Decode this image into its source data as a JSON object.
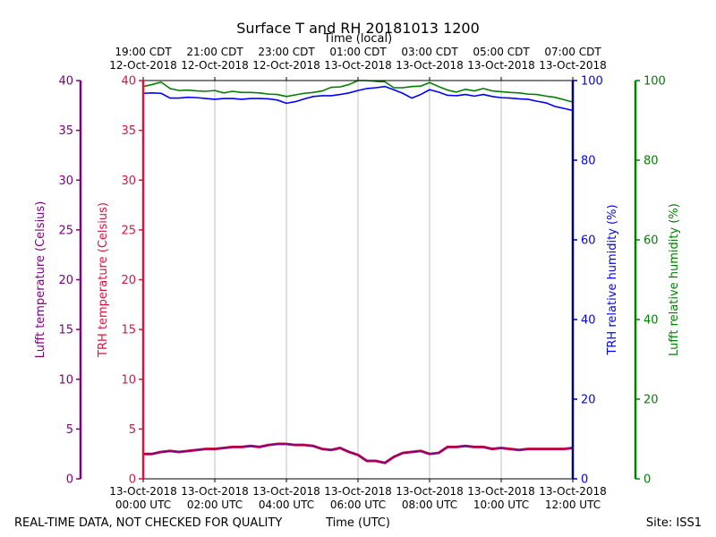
{
  "chart_data": {
    "type": "line",
    "title": "Surface T and RH 20181013 1200",
    "top_axis_label": "Time (local)",
    "top_ticks": [
      {
        "line1": "19:00 CDT",
        "line2": "12-Oct-2018",
        "hour": 0
      },
      {
        "line1": "21:00 CDT",
        "line2": "12-Oct-2018",
        "hour": 2
      },
      {
        "line1": "23:00 CDT",
        "line2": "12-Oct-2018",
        "hour": 4
      },
      {
        "line1": "01:00 CDT",
        "line2": "13-Oct-2018",
        "hour": 6
      },
      {
        "line1": "03:00 CDT",
        "line2": "13-Oct-2018",
        "hour": 8
      },
      {
        "line1": "05:00 CDT",
        "line2": "13-Oct-2018",
        "hour": 10
      },
      {
        "line1": "07:00 CDT",
        "line2": "13-Oct-2018",
        "hour": 12
      }
    ],
    "bottom_ticks": [
      {
        "line1": "13-Oct-2018",
        "line2": "00:00 UTC",
        "hour": 0
      },
      {
        "line1": "13-Oct-2018",
        "line2": "02:00 UTC",
        "hour": 2
      },
      {
        "line1": "13-Oct-2018",
        "line2": "04:00 UTC",
        "hour": 4
      },
      {
        "line1": "13-Oct-2018",
        "line2": "06:00 UTC",
        "hour": 6
      },
      {
        "line1": "13-Oct-2018",
        "line2": "08:00 UTC",
        "hour": 8
      },
      {
        "line1": "13-Oct-2018",
        "line2": "10:00 UTC",
        "hour": 10
      },
      {
        "line1": "13-Oct-2018",
        "line2": "12:00 UTC",
        "hour": 12
      }
    ],
    "xlabel": "Time (UTC)",
    "xlim_hours_utc": [
      0,
      12
    ],
    "grid": "vertical",
    "axes": {
      "lufft_temp": {
        "label": "Lufft temperature (Celsius)",
        "ylim": [
          0,
          40
        ],
        "ticks": [
          0,
          5,
          10,
          15,
          20,
          25,
          30,
          35,
          40
        ],
        "color": "#800080"
      },
      "trh_temp": {
        "label": "TRH temperature (Celsius)",
        "ylim": [
          0,
          40
        ],
        "ticks": [
          0,
          5,
          10,
          15,
          20,
          25,
          30,
          35,
          40
        ],
        "color": "#dc143c"
      },
      "trh_rh": {
        "label": "TRH relative humidity (%)",
        "ylim": [
          0,
          100
        ],
        "ticks": [
          0,
          20,
          40,
          60,
          80,
          100
        ],
        "color": "#0000ff",
        "spine_color": "#00008b"
      },
      "lufft_rh": {
        "label": "Lufft relative humidity (%)",
        "ylim": [
          0,
          100
        ],
        "ticks": [
          0,
          20,
          40,
          60,
          80,
          100
        ],
        "color": "#008000"
      }
    },
    "series": [
      {
        "axis": "trh_temp",
        "color": "#dc143c",
        "x": [
          0,
          0.25,
          0.5,
          0.75,
          1,
          1.25,
          1.5,
          1.75,
          2,
          2.25,
          2.5,
          2.75,
          3,
          3.25,
          3.5,
          3.75,
          4,
          4.25,
          4.5,
          4.75,
          5,
          5.25,
          5.5,
          5.75,
          6,
          6.25,
          6.5,
          6.75,
          7,
          7.25,
          7.5,
          7.75,
          8,
          8.25,
          8.5,
          8.75,
          9,
          9.25,
          9.5,
          9.75,
          10,
          10.25,
          10.5,
          10.75,
          11,
          11.25,
          11.5,
          11.75,
          12
        ],
        "values": [
          2.5,
          2.5,
          2.7,
          2.8,
          2.7,
          2.8,
          2.9,
          3.0,
          3.0,
          3.1,
          3.2,
          3.2,
          3.3,
          3.2,
          3.4,
          3.5,
          3.5,
          3.4,
          3.4,
          3.3,
          3.0,
          2.9,
          3.1,
          2.7,
          2.4,
          1.8,
          1.8,
          1.6,
          2.2,
          2.6,
          2.7,
          2.8,
          2.5,
          2.6,
          3.2,
          3.2,
          3.3,
          3.2,
          3.2,
          3.0,
          3.1,
          3.0,
          2.9,
          3.0,
          3.0,
          3.0,
          3.0,
          3.0,
          3.1
        ]
      },
      {
        "axis": "lufft_temp",
        "color": "#800080",
        "x": [
          0,
          0.25,
          0.5,
          0.75,
          1,
          1.25,
          1.5,
          1.75,
          2,
          2.25,
          2.5,
          2.75,
          3,
          3.25,
          3.5,
          3.75,
          4,
          4.25,
          4.5,
          4.75,
          5,
          5.25,
          5.5,
          5.75,
          6,
          6.25,
          6.5,
          6.75,
          7,
          7.25,
          7.5,
          7.75,
          8,
          8.25,
          8.5,
          8.75,
          9,
          9.25,
          9.5,
          9.75,
          10,
          10.25,
          10.5,
          10.75,
          11,
          11.25,
          11.5,
          11.75,
          12
        ],
        "values": [
          2.5,
          2.5,
          2.7,
          2.8,
          2.7,
          2.8,
          2.9,
          3.0,
          3.0,
          3.1,
          3.2,
          3.2,
          3.3,
          3.2,
          3.4,
          3.5,
          3.5,
          3.4,
          3.4,
          3.3,
          3.0,
          2.9,
          3.1,
          2.7,
          2.4,
          1.8,
          1.8,
          1.6,
          2.2,
          2.6,
          2.7,
          2.8,
          2.5,
          2.6,
          3.2,
          3.2,
          3.3,
          3.2,
          3.2,
          3.0,
          3.1,
          3.0,
          2.9,
          3.0,
          3.0,
          3.0,
          3.0,
          3.0,
          3.1
        ]
      },
      {
        "axis": "lufft_rh",
        "color": "#008000",
        "x": [
          0,
          0.25,
          0.5,
          0.75,
          1,
          1.25,
          1.5,
          1.75,
          2,
          2.25,
          2.5,
          2.75,
          3,
          3.25,
          3.5,
          3.75,
          4,
          4.25,
          4.5,
          4.75,
          5,
          5.25,
          5.5,
          5.75,
          6,
          6.25,
          6.5,
          6.75,
          7,
          7.25,
          7.5,
          7.75,
          8,
          8.25,
          8.5,
          8.75,
          9,
          9.25,
          9.5,
          9.75,
          10,
          10.25,
          10.5,
          10.75,
          11,
          11.25,
          11.5,
          11.75,
          12
        ],
        "values": [
          98.5,
          99.0,
          99.6,
          98.0,
          97.5,
          97.6,
          97.4,
          97.3,
          97.5,
          96.9,
          97.3,
          97.0,
          97.0,
          96.9,
          96.6,
          96.5,
          96.0,
          96.4,
          96.8,
          97.0,
          97.4,
          98.3,
          98.4,
          99.0,
          100,
          100,
          99.8,
          99.7,
          98.2,
          98.2,
          98.5,
          98.6,
          99.5,
          98.5,
          97.6,
          97.1,
          97.8,
          97.4,
          98.0,
          97.4,
          97.2,
          97.0,
          96.9,
          96.6,
          96.5,
          96.1,
          95.8,
          95.2,
          94.6
        ]
      },
      {
        "axis": "trh_rh",
        "color": "#0000ff",
        "x": [
          0,
          0.25,
          0.5,
          0.75,
          1,
          1.25,
          1.5,
          1.75,
          2,
          2.25,
          2.5,
          2.75,
          3,
          3.25,
          3.5,
          3.75,
          4,
          4.25,
          4.5,
          4.75,
          5,
          5.25,
          5.5,
          5.75,
          6,
          6.25,
          6.5,
          6.75,
          7,
          7.25,
          7.5,
          7.75,
          8,
          8.25,
          8.5,
          8.75,
          9,
          9.25,
          9.5,
          9.75,
          10,
          10.25,
          10.5,
          10.75,
          11,
          11.25,
          11.5,
          11.75,
          12
        ],
        "values": [
          96.8,
          96.9,
          96.8,
          95.6,
          95.6,
          95.8,
          95.7,
          95.5,
          95.3,
          95.5,
          95.5,
          95.3,
          95.5,
          95.5,
          95.4,
          95.1,
          94.3,
          94.7,
          95.4,
          96.0,
          96.2,
          96.2,
          96.5,
          96.9,
          97.5,
          98.0,
          98.2,
          98.5,
          97.7,
          96.8,
          95.6,
          96.5,
          97.7,
          97.1,
          96.3,
          96.2,
          96.5,
          96.1,
          96.5,
          96.0,
          95.7,
          95.6,
          95.4,
          95.3,
          94.8,
          94.4,
          93.5,
          93.0,
          92.5
        ]
      }
    ]
  },
  "footer": {
    "quality_note": "REAL-TIME DATA, NOT CHECKED FOR QUALITY",
    "site": "Site: ISS1"
  }
}
